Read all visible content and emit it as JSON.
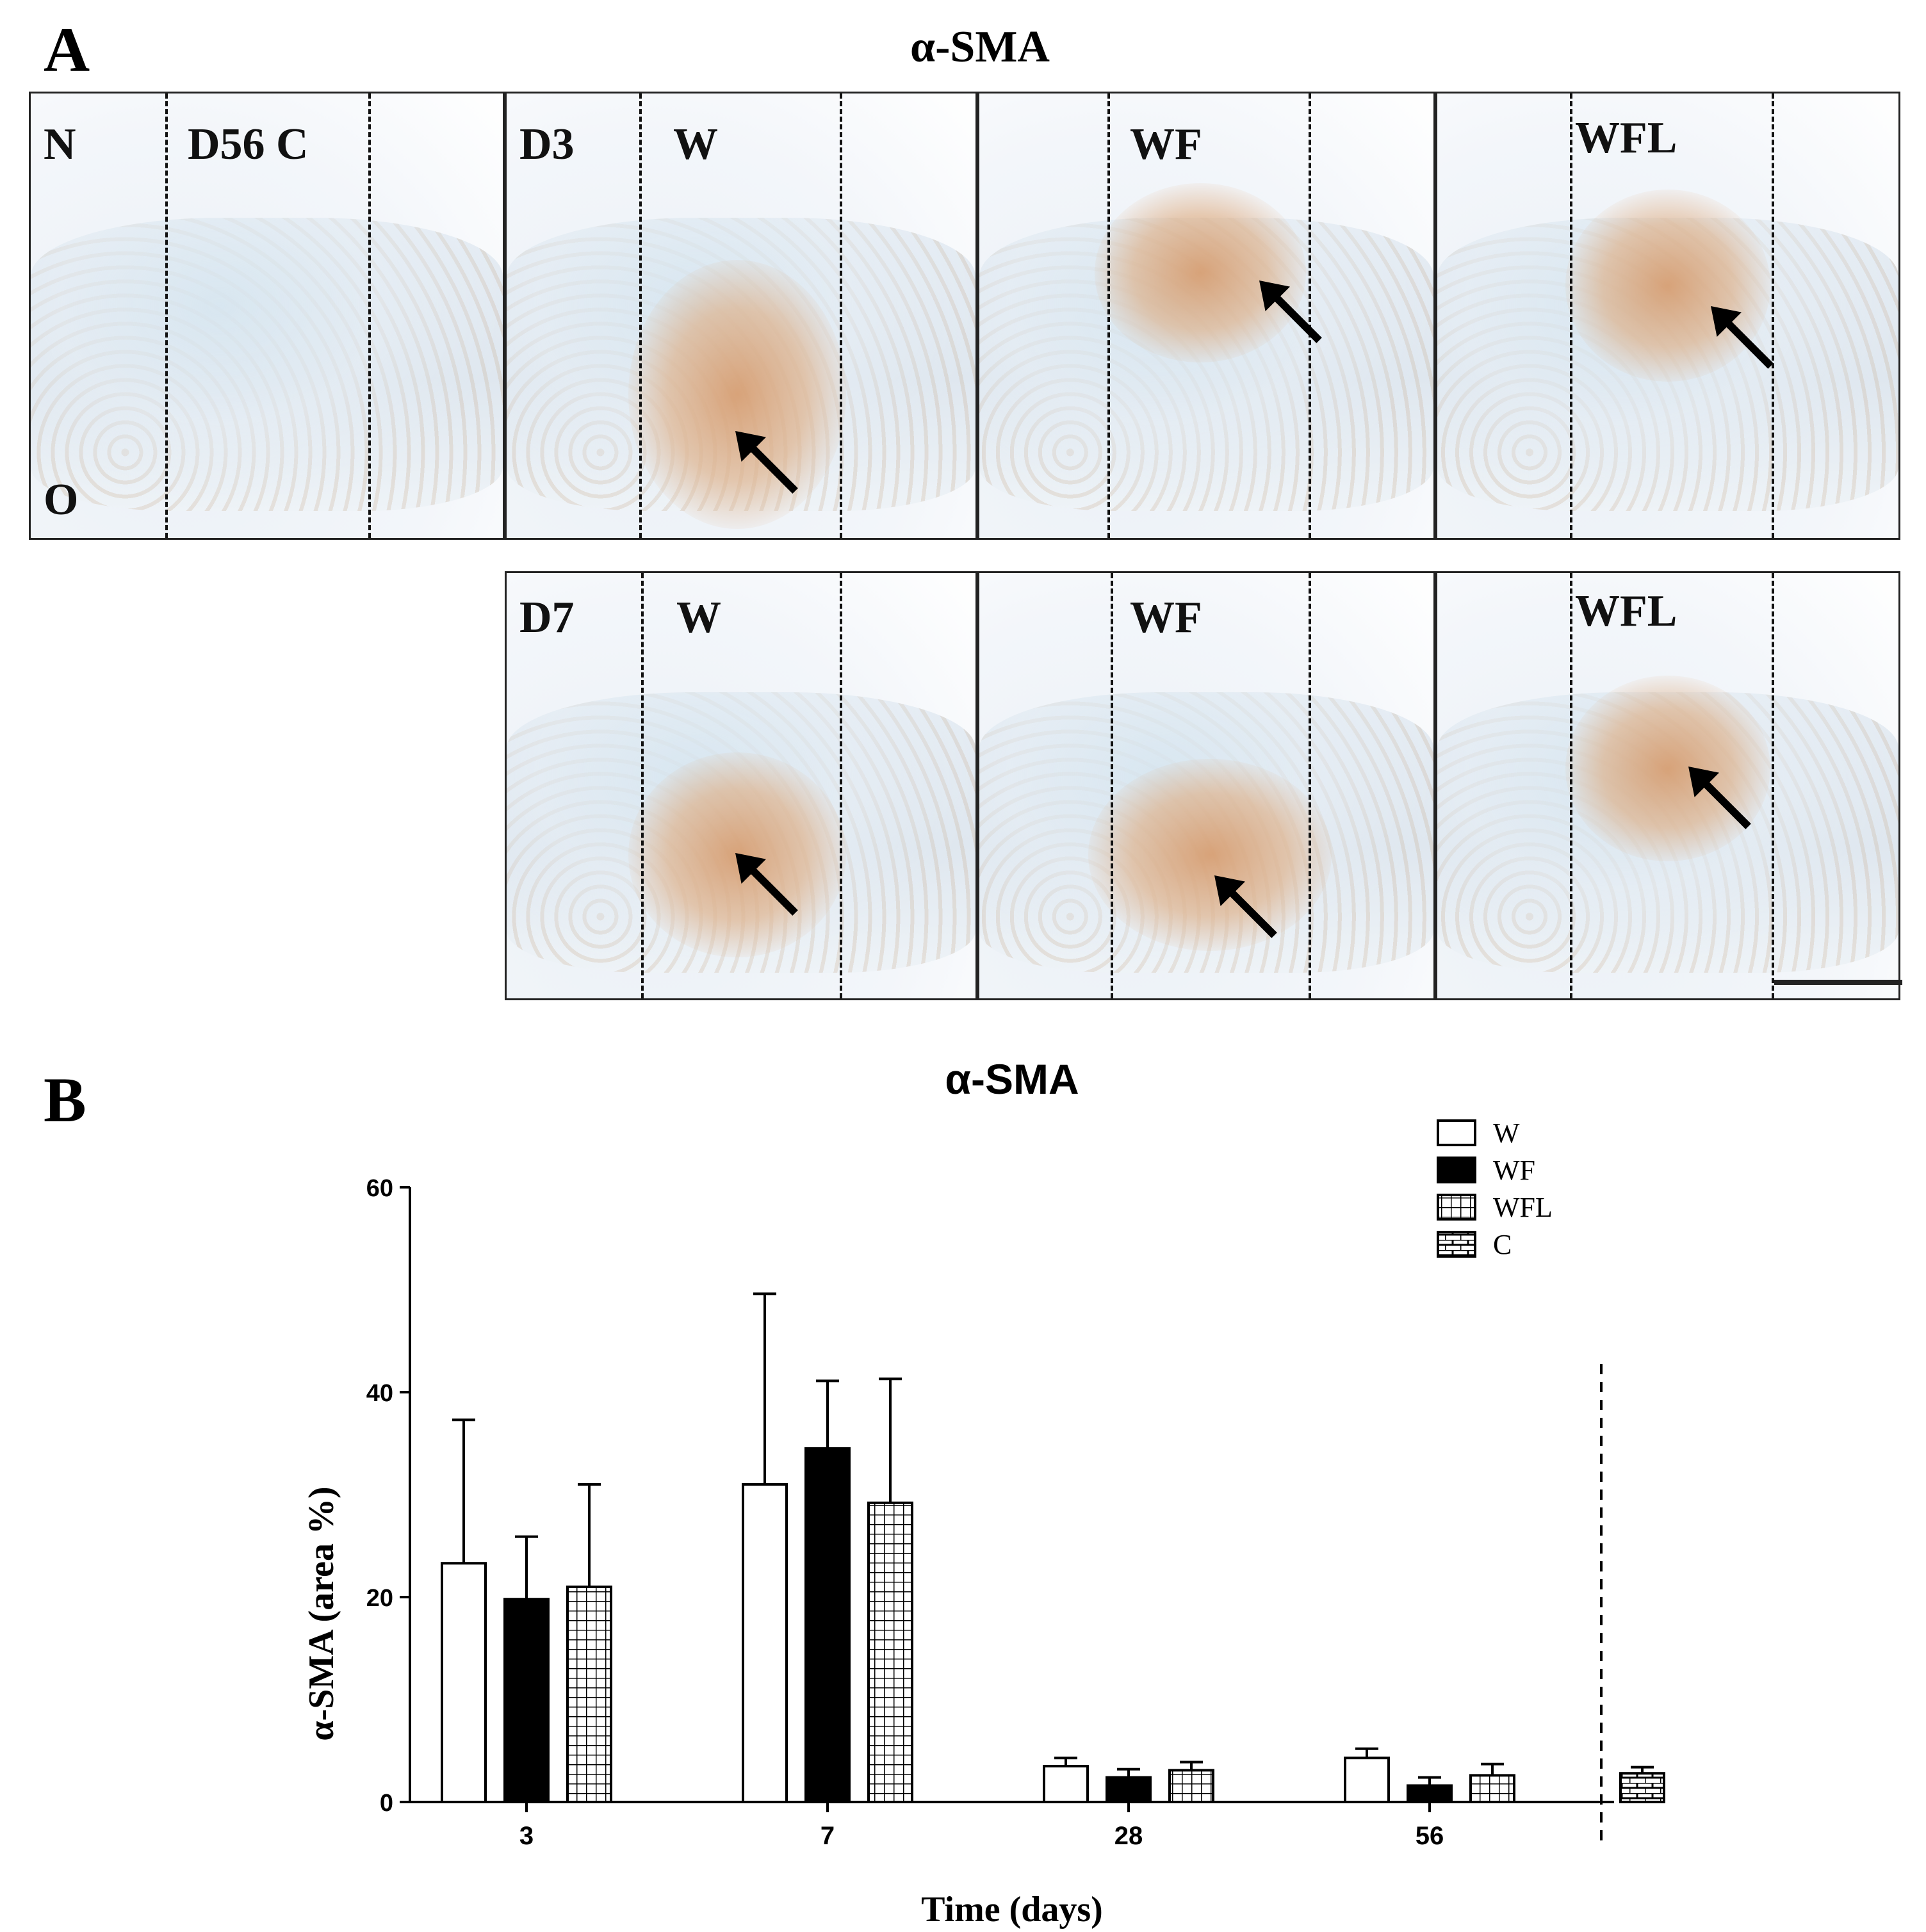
{
  "panel_a": {
    "letter": "A",
    "title": "α-SMA",
    "tiles": [
      {
        "id": "N",
        "labels": [
          "N",
          "D56 C"
        ],
        "corner": "O",
        "stain": null
      },
      {
        "id": "D3W",
        "labels": [
          "D3",
          "W"
        ],
        "corner": "",
        "stain": "strong"
      },
      {
        "id": "D3WF",
        "labels": [
          "WF"
        ],
        "corner": "",
        "stain": "medium"
      },
      {
        "id": "D3WFL",
        "labels": [
          "WFL"
        ],
        "corner": "",
        "stain": "medium"
      },
      {
        "id": "D7W",
        "labels": [
          "D7",
          "W"
        ],
        "corner": "",
        "stain": "strong"
      },
      {
        "id": "D7WF",
        "labels": [
          "WF"
        ],
        "corner": "",
        "stain": "strong"
      },
      {
        "id": "D7WFL",
        "labels": [
          "WFL"
        ],
        "corner": "",
        "stain": "medium"
      }
    ]
  },
  "panel_b": {
    "letter": "B"
  },
  "chart_data": {
    "type": "bar",
    "title": "α-SMA",
    "xlabel": "Time (days)",
    "ylabel": "α-SMA (area %)",
    "ylim": [
      0,
      60
    ],
    "yticks": [
      "0",
      "20",
      "40",
      "60"
    ],
    "categories": [
      "3",
      "7",
      "28",
      "56"
    ],
    "series": [
      {
        "name": "W",
        "pattern": "open",
        "values": [
          23.3,
          31.0,
          3.5,
          4.3
        ],
        "errors": [
          14.0,
          18.6,
          0.8,
          0.9
        ]
      },
      {
        "name": "WF",
        "pattern": "solid",
        "values": [
          19.8,
          34.5,
          2.4,
          1.6
        ],
        "errors": [
          6.1,
          6.6,
          0.8,
          0.8
        ]
      },
      {
        "name": "WFL",
        "pattern": "grid",
        "values": [
          21.0,
          29.2,
          3.1,
          2.6
        ],
        "errors": [
          10.0,
          12.1,
          0.8,
          1.1
        ]
      }
    ],
    "control": {
      "name": "C",
      "pattern": "brick",
      "value": 2.8,
      "error": 0.6
    },
    "legend_position": "top-right",
    "colors": {
      "bar_fill_open": "#ffffff",
      "bar_fill_solid": "#000000",
      "stroke": "#000000"
    }
  }
}
